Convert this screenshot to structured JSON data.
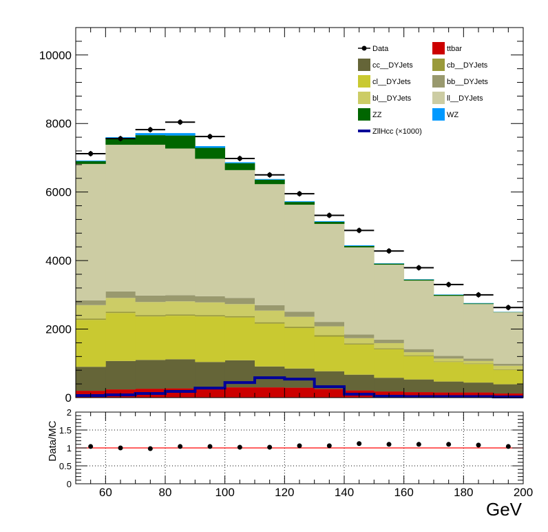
{
  "chart_data": [
    {
      "type": "bar",
      "stacked": true,
      "x_bin_edges": [
        50,
        60,
        70,
        80,
        90,
        100,
        110,
        120,
        130,
        140,
        150,
        160,
        170,
        180,
        190,
        200
      ],
      "ylim": [
        0,
        10800
      ],
      "y_ticks": [
        0,
        2000,
        4000,
        6000,
        8000,
        10000
      ],
      "y_tick_labels": [
        "0",
        "2000",
        "4000",
        "6000",
        "8000",
        "10000"
      ],
      "stack_order": [
        "ttbar",
        "cc__DYJets",
        "cl__DYJets",
        "cb__DYJets",
        "bl__DYJets",
        "bb__DYJets",
        "ll__DYJets",
        "ZZ",
        "WZ"
      ],
      "series": [
        {
          "name": "ttbar",
          "color": "#cc0000",
          "values": [
            200,
            240,
            260,
            270,
            280,
            300,
            300,
            290,
            250,
            210,
            180,
            160,
            150,
            150,
            120
          ]
        },
        {
          "name": "cc__DYJets",
          "color": "#656538",
          "values": [
            700,
            830,
            840,
            850,
            760,
            790,
            610,
            560,
            520,
            460,
            400,
            370,
            320,
            290,
            270
          ]
        },
        {
          "name": "cl__DYJets",
          "color": "#c9c931",
          "values": [
            1370,
            1400,
            1270,
            1270,
            1330,
            1250,
            1250,
            1180,
            1010,
            880,
            830,
            680,
            570,
            540,
            420
          ]
        },
        {
          "name": "cb__DYJets",
          "color": "#9a9a3a",
          "values": [
            40,
            40,
            40,
            40,
            40,
            40,
            40,
            40,
            40,
            35,
            30,
            25,
            20,
            20,
            20
          ]
        },
        {
          "name": "bb__DYJets",
          "color": "#99996e",
          "values": [
            140,
            190,
            190,
            180,
            180,
            180,
            160,
            150,
            130,
            110,
            100,
            90,
            80,
            70,
            60
          ]
        },
        {
          "name": "bl__DYJets",
          "color": "#cccc66",
          "values": [
            390,
            400,
            380,
            380,
            370,
            350,
            340,
            290,
            260,
            150,
            150,
            90,
            80,
            70,
            100
          ]
        },
        {
          "name": "ll__DYJets",
          "color": "#cccca3",
          "values": [
            3980,
            4280,
            4400,
            4280,
            4010,
            3730,
            3530,
            3120,
            2860,
            2540,
            2190,
            2000,
            1750,
            1590,
            1500
          ]
        },
        {
          "name": "ZZ",
          "color": "#006600",
          "values": [
            80,
            190,
            280,
            380,
            320,
            200,
            130,
            80,
            60,
            40,
            30,
            30,
            30,
            20,
            10
          ]
        },
        {
          "name": "WZ",
          "color": "#0099ff",
          "values": [
            20,
            30,
            60,
            70,
            50,
            30,
            20,
            20,
            20,
            20,
            10,
            10,
            10,
            10,
            5
          ]
        }
      ],
      "signal": {
        "name": "ZllHcc (×1000)",
        "color": "#000099",
        "values": [
          60,
          80,
          120,
          180,
          280,
          440,
          580,
          540,
          320,
          100,
          40,
          30,
          30,
          30,
          20
        ]
      },
      "data": {
        "name": "Data",
        "x": [
          55,
          65,
          75,
          85,
          95,
          105,
          115,
          125,
          135,
          145,
          155,
          165,
          175,
          185,
          195
        ],
        "y": [
          7120,
          7560,
          7820,
          8040,
          7620,
          6980,
          6500,
          5950,
          5320,
          4880,
          4280,
          3790,
          3300,
          3000,
          2630
        ]
      },
      "legend_position": "top-right",
      "legend": [
        {
          "label": "Data",
          "kind": "marker",
          "color": "#000000"
        },
        {
          "label": "ttbar",
          "kind": "fill",
          "color": "#cc0000"
        },
        {
          "label": "cc__DYJets",
          "kind": "fill",
          "color": "#656538"
        },
        {
          "label": "cb__DYJets",
          "kind": "fill",
          "color": "#9a9a3a"
        },
        {
          "label": "cl__DYJets",
          "kind": "fill",
          "color": "#c9c931"
        },
        {
          "label": "bb__DYJets",
          "kind": "fill",
          "color": "#99996e"
        },
        {
          "label": "bl__DYJets",
          "kind": "fill",
          "color": "#cccc66"
        },
        {
          "label": "ll__DYJets",
          "kind": "fill",
          "color": "#cccca3"
        },
        {
          "label": "ZZ",
          "kind": "fill",
          "color": "#006600"
        },
        {
          "label": "WZ",
          "kind": "fill",
          "color": "#0099ff"
        },
        {
          "label": "ZllHcc (×1000)",
          "kind": "line",
          "color": "#000099"
        }
      ]
    },
    {
      "type": "scatter",
      "ylabel": "Data/MC",
      "xlabel": "GeV",
      "xlim": [
        50,
        200
      ],
      "ylim": [
        0,
        2
      ],
      "x_ticks": [
        60,
        80,
        100,
        120,
        140,
        160,
        180,
        200
      ],
      "x_tick_labels": [
        "60",
        "80",
        "100",
        "120",
        "140",
        "160",
        "180",
        "200"
      ],
      "y_ticks": [
        0,
        0.5,
        1,
        1.5,
        2
      ],
      "y_tick_labels": [
        "0",
        "0.5",
        "1",
        "1.5",
        "2"
      ],
      "grid": true,
      "reference_line": {
        "y": 1,
        "color": "#ff0000"
      },
      "x": [
        55,
        65,
        75,
        85,
        95,
        105,
        115,
        125,
        135,
        145,
        155,
        165,
        175,
        185,
        195
      ],
      "y": [
        1.04,
        1.0,
        0.98,
        1.04,
        1.04,
        1.02,
        1.02,
        1.06,
        1.06,
        1.12,
        1.1,
        1.1,
        1.1,
        1.08,
        1.04
      ]
    }
  ]
}
